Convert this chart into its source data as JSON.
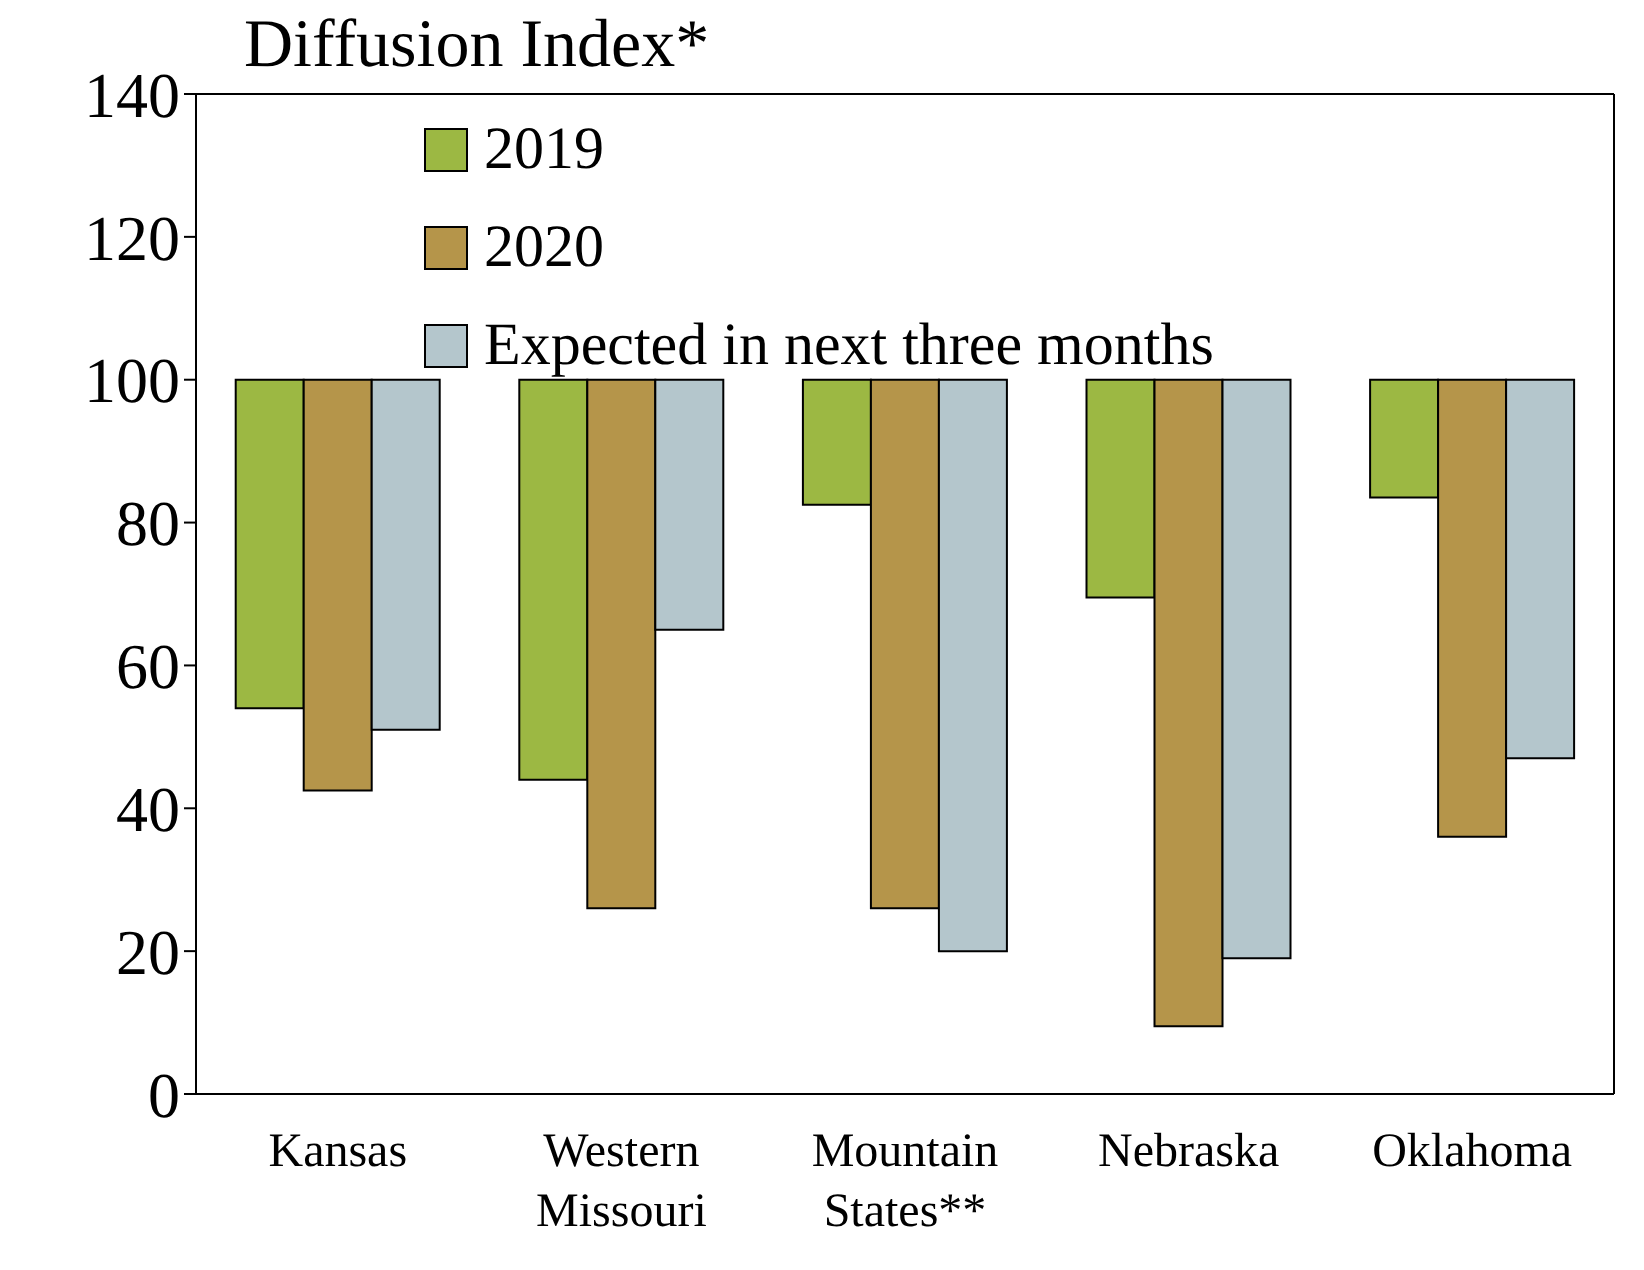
{
  "chart_data": {
    "type": "bar",
    "title": "Diffusion Index*",
    "categories": [
      "Kansas",
      "Western\nMissouri",
      "Mountain\nStates**",
      "Nebraska",
      "Oklahoma"
    ],
    "series": [
      {
        "name": "2019",
        "color": "#9cb843",
        "base": [
          100,
          100,
          100,
          100,
          100
        ],
        "values": [
          -46,
          -56,
          -17.5,
          -30.5,
          -16.5
        ]
      },
      {
        "name": "2020",
        "color": "#b5954a",
        "base": [
          100,
          100,
          100,
          100,
          100
        ],
        "values": [
          -57.5,
          -74,
          -74,
          -90.5,
          -64
        ]
      },
      {
        "name": "Expected in next three months",
        "color": "#b4c6cc",
        "base": [
          100,
          100,
          100,
          100,
          100
        ],
        "values": [
          -49,
          -35,
          -80,
          -81,
          -53
        ]
      }
    ],
    "ylim": [
      0,
      140
    ],
    "yticks": [
      0,
      20,
      40,
      60,
      80,
      100,
      120,
      140
    ],
    "grid": false,
    "legend": "top"
  }
}
